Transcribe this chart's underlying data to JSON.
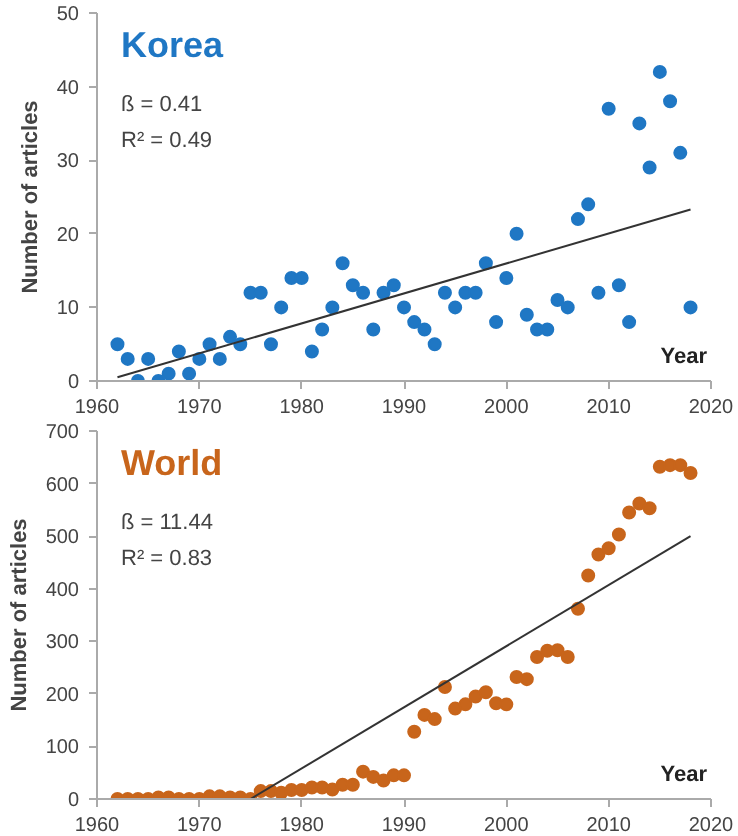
{
  "chart_data": [
    {
      "type": "scatter",
      "title": "Korea",
      "xlabel": "Year",
      "ylabel": "Number of articles",
      "annotations": [
        "ß = 0.41",
        "R² = 0.49"
      ],
      "marker": "circle",
      "grid": false,
      "x": [
        1962,
        1963,
        1964,
        1965,
        1966,
        1967,
        1968,
        1969,
        1970,
        1971,
        1972,
        1973,
        1974,
        1975,
        1976,
        1977,
        1978,
        1979,
        1980,
        1981,
        1982,
        1983,
        1984,
        1985,
        1986,
        1987,
        1988,
        1989,
        1990,
        1991,
        1992,
        1993,
        1994,
        1995,
        1996,
        1997,
        1998,
        1999,
        2000,
        2001,
        2002,
        2003,
        2004,
        2005,
        2006,
        2007,
        2008,
        2009,
        2010,
        2011,
        2012,
        2013,
        2014,
        2015,
        2016,
        2017,
        2018
      ],
      "series": [
        {
          "color": "#1f77c4",
          "values": [
            5,
            3,
            0,
            3,
            0,
            1,
            4,
            1,
            3,
            5,
            3,
            6,
            5,
            12,
            12,
            5,
            10,
            14,
            14,
            4,
            7,
            10,
            16,
            13,
            12,
            7,
            12,
            13,
            10,
            8,
            7,
            5,
            12,
            10,
            12,
            12,
            16,
            8,
            14,
            20,
            9,
            7,
            7,
            11,
            10,
            22,
            24,
            12,
            37,
            13,
            8,
            35,
            29,
            42,
            38,
            31,
            10
          ]
        },
        {
          "type": "line",
          "marker": "none",
          "color": "#333333",
          "x": [
            1962,
            2018
          ],
          "values": [
            0.5,
            23.3
          ]
        }
      ],
      "xlim": [
        1960,
        2020
      ],
      "xticks": [
        1960,
        1970,
        1980,
        1990,
        2000,
        2010,
        2020
      ],
      "ylim": [
        0,
        50
      ],
      "yticks": [
        0,
        10,
        20,
        30,
        40,
        50
      ]
    },
    {
      "type": "scatter",
      "title": "World",
      "xlabel": "Year",
      "ylabel": "Number of articles",
      "annotations": [
        "ß = 11.44",
        "R² = 0.83"
      ],
      "marker": "circle",
      "grid": false,
      "x": [
        1962,
        1963,
        1964,
        1965,
        1966,
        1967,
        1968,
        1969,
        1970,
        1971,
        1972,
        1973,
        1974,
        1975,
        1976,
        1977,
        1978,
        1979,
        1980,
        1981,
        1982,
        1983,
        1984,
        1985,
        1986,
        1987,
        1988,
        1989,
        1990,
        1991,
        1992,
        1993,
        1994,
        1995,
        1996,
        1997,
        1998,
        1999,
        2000,
        2001,
        2002,
        2003,
        2004,
        2005,
        2006,
        2007,
        2008,
        2009,
        2010,
        2011,
        2012,
        2013,
        2014,
        2015,
        2016,
        2017,
        2018
      ],
      "series": [
        {
          "color": "#c8651b",
          "values": [
            0,
            0,
            0,
            0,
            3,
            3,
            0,
            0,
            0,
            5,
            5,
            3,
            3,
            0,
            15,
            15,
            12,
            17,
            17,
            22,
            22,
            18,
            27,
            27,
            52,
            42,
            35,
            45,
            45,
            128,
            160,
            152,
            213,
            172,
            180,
            195,
            203,
            182,
            180,
            232,
            228,
            270,
            282,
            283,
            270,
            362,
            425,
            465,
            477,
            503,
            545,
            562,
            553,
            632,
            635,
            635,
            620
          ]
        },
        {
          "type": "line",
          "marker": "none",
          "color": "#333333",
          "x": [
            1975,
            2018
          ],
          "values": [
            0,
            500
          ]
        }
      ],
      "xlim": [
        1960,
        2020
      ],
      "xticks": [
        1960,
        1970,
        1980,
        1990,
        2000,
        2010,
        2020
      ],
      "ylim": [
        0,
        700
      ],
      "yticks": [
        0,
        100,
        200,
        300,
        400,
        500,
        600,
        700
      ]
    }
  ]
}
